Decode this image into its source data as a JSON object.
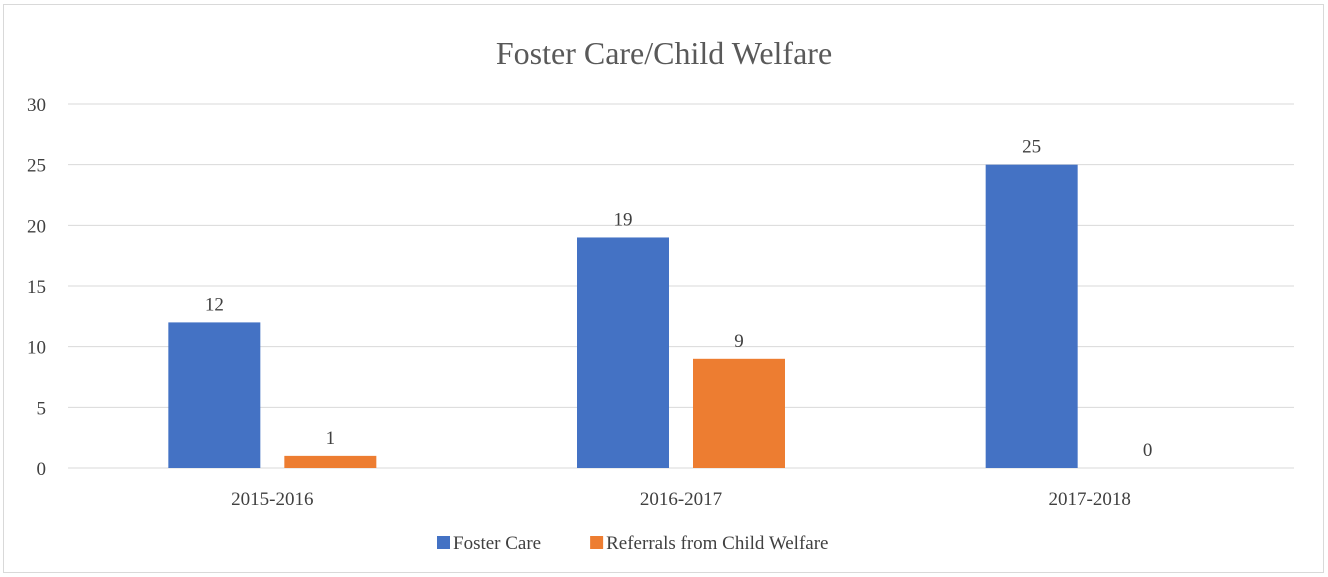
{
  "chart_data": {
    "type": "bar",
    "title": "Foster Care/Child Welfare",
    "categories": [
      "2015-2016",
      "2016-2017",
      "2017-2018"
    ],
    "series": [
      {
        "name": "Foster Care",
        "values": [
          12,
          19,
          25
        ],
        "color": "#4472c4"
      },
      {
        "name": "Referrals from Child Welfare",
        "values": [
          1,
          9,
          0
        ],
        "color": "#ed7d31"
      }
    ],
    "ylim": [
      0,
      30
    ],
    "yticks": [
      0,
      5,
      10,
      15,
      20,
      25,
      30
    ],
    "grid": true,
    "legend_position": "bottom",
    "data_labels": true
  }
}
